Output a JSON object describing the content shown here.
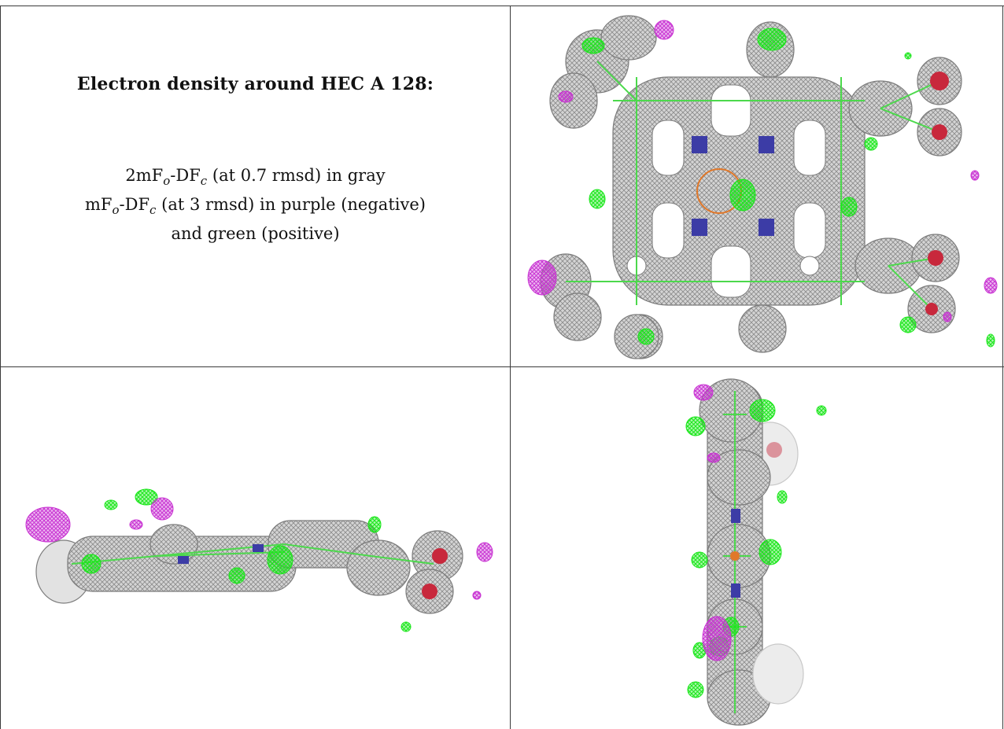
{
  "caption": {
    "title": "Electron density around HEC A 128:",
    "line1": {
      "pre": "2mF",
      "sub1": "o",
      "mid": "-DF",
      "sub2": "c",
      "post": " (at 0.7 rmsd) in gray"
    },
    "line2": {
      "pre": "mF",
      "sub1": "o",
      "mid": "-DF",
      "sub2": "c",
      "post": " (at 3 rmsd) in purple (negative)"
    },
    "line3": "and green (positive)"
  },
  "colors": {
    "density_gray": "#9a9a9a",
    "negative_purple": "#c832d2",
    "positive_green": "#19e619",
    "bond_green": "#4cd94c",
    "nitrogen_blue": "#3c3ca6",
    "oxygen_red": "#c8283c",
    "iron_orange": "#e0782a"
  },
  "panels": {
    "top_view": "heme-top-view",
    "side_view": "heme-side-view",
    "edge_view": "heme-edge-view"
  }
}
